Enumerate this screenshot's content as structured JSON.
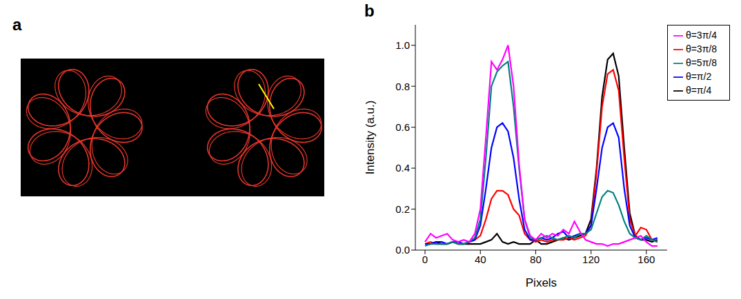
{
  "panel_labels": [
    "a",
    "b"
  ],
  "chart_data": {
    "type": "line",
    "xlabel": "Pixels",
    "ylabel": "Intensity (a.u.)",
    "x": [
      0,
      4,
      8,
      12,
      16,
      20,
      24,
      28,
      32,
      36,
      40,
      44,
      48,
      52,
      56,
      60,
      64,
      68,
      72,
      76,
      80,
      84,
      88,
      92,
      96,
      100,
      104,
      108,
      112,
      116,
      120,
      124,
      128,
      132,
      136,
      140,
      144,
      148,
      152,
      156,
      160,
      164,
      168
    ],
    "xlim": [
      -7,
      175
    ],
    "xticks": [
      0,
      40,
      80,
      120,
      160
    ],
    "ylim": [
      0,
      1.1
    ],
    "yticks": [
      {
        "value": 0,
        "label": "0.0"
      },
      {
        "value": 0.2,
        "label": "0.2"
      },
      {
        "value": 0.4,
        "label": "0.4"
      },
      {
        "value": 0.6,
        "label": "0.6"
      },
      {
        "value": 0.8,
        "label": "0.8"
      },
      {
        "value": 1.0,
        "label": "1.0"
      }
    ],
    "legend": "right",
    "series": [
      {
        "name": "θ=π/4",
        "color": "#000000",
        "values": [
          0.03,
          0.03,
          0.04,
          0.03,
          0.03,
          0.04,
          0.03,
          0.03,
          0.03,
          0.03,
          0.03,
          0.04,
          0.05,
          0.08,
          0.04,
          0.03,
          0.04,
          0.03,
          0.03,
          0.03,
          0.05,
          0.03,
          0.03,
          0.04,
          0.05,
          0.06,
          0.05,
          0.06,
          0.07,
          0.08,
          0.15,
          0.4,
          0.75,
          0.93,
          0.96,
          0.85,
          0.5,
          0.18,
          0.07,
          0.05,
          0.05,
          0.04,
          0.05
        ]
      },
      {
        "name": "θ=3π/8",
        "color": "#ff0000",
        "values": [
          0.03,
          0.04,
          0.03,
          0.03,
          0.03,
          0.04,
          0.03,
          0.03,
          0.04,
          0.05,
          0.07,
          0.15,
          0.25,
          0.29,
          0.29,
          0.27,
          0.2,
          0.17,
          0.08,
          0.05,
          0.04,
          0.05,
          0.04,
          0.05,
          0.05,
          0.05,
          0.06,
          0.05,
          0.06,
          0.07,
          0.12,
          0.38,
          0.7,
          0.86,
          0.88,
          0.78,
          0.45,
          0.15,
          0.07,
          0.11,
          0.1,
          0.05,
          0.04
        ]
      },
      {
        "name": "θ=π/2",
        "color": "#0000ff",
        "values": [
          0.03,
          0.03,
          0.04,
          0.04,
          0.03,
          0.04,
          0.04,
          0.03,
          0.04,
          0.05,
          0.12,
          0.3,
          0.5,
          0.6,
          0.62,
          0.58,
          0.45,
          0.25,
          0.1,
          0.05,
          0.05,
          0.06,
          0.05,
          0.06,
          0.08,
          0.09,
          0.06,
          0.07,
          0.08,
          0.08,
          0.12,
          0.3,
          0.5,
          0.6,
          0.62,
          0.55,
          0.3,
          0.12,
          0.06,
          0.05,
          0.06,
          0.05,
          0.06
        ]
      },
      {
        "name": "θ=5π/8",
        "color": "#008080",
        "values": [
          0.02,
          0.03,
          0.03,
          0.03,
          0.03,
          0.04,
          0.03,
          0.03,
          0.04,
          0.06,
          0.15,
          0.45,
          0.8,
          0.87,
          0.9,
          0.92,
          0.7,
          0.4,
          0.15,
          0.06,
          0.05,
          0.06,
          0.07,
          0.06,
          0.05,
          0.06,
          0.07,
          0.06,
          0.08,
          0.08,
          0.1,
          0.18,
          0.26,
          0.29,
          0.28,
          0.22,
          0.14,
          0.08,
          0.06,
          0.05,
          0.07,
          0.05,
          0.04
        ]
      },
      {
        "name": "θ=3π/4",
        "color": "#ff00ff",
        "values": [
          0.04,
          0.08,
          0.06,
          0.07,
          0.08,
          0.05,
          0.04,
          0.05,
          0.04,
          0.08,
          0.2,
          0.55,
          0.92,
          0.88,
          0.93,
          1.0,
          0.8,
          0.42,
          0.15,
          0.07,
          0.05,
          0.08,
          0.06,
          0.08,
          0.07,
          0.1,
          0.08,
          0.14,
          0.09,
          0.05,
          0.04,
          0.03,
          0.03,
          0.02,
          0.03,
          0.03,
          0.04,
          0.05,
          0.06,
          0.07,
          0.04,
          0.02,
          0.02
        ]
      }
    ]
  }
}
